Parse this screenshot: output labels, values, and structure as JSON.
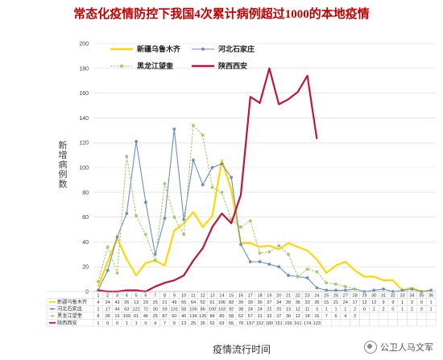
{
  "chart_data": {
    "type": "line",
    "title": "常态化疫情防控下我国4次累计病例超过1000的本地疫情",
    "xlabel": "疫情流行时间",
    "ylabel": "新增病例数",
    "ylim": [
      0,
      200
    ],
    "yticks": [
      0,
      20,
      40,
      60,
      80,
      100,
      120,
      140,
      160,
      180,
      200
    ],
    "categories": [
      "1",
      "2",
      "3",
      "4",
      "5",
      "6",
      "7",
      "8",
      "9",
      "10",
      "11",
      "12",
      "13",
      "14",
      "15",
      "16",
      "17",
      "18",
      "19",
      "20",
      "21",
      "22",
      "23",
      "24",
      "25",
      "26",
      "27",
      "28",
      "29",
      "30",
      "31",
      "32",
      "33",
      "34",
      "35",
      "36"
    ],
    "grid": true,
    "legend_position": "top-left",
    "series": [
      {
        "name": "新疆乌鲁木齐",
        "color": "#FFD700",
        "marker": "none",
        "dashed": false,
        "values": [
          4,
          24,
          43,
          26,
          13,
          23,
          25,
          21,
          49,
          55,
          64,
          52,
          61,
          106,
          82,
          39,
          39,
          36,
          37,
          34,
          39,
          36,
          33,
          26,
          15,
          21,
          24,
          17,
          12,
          12,
          9,
          9,
          1,
          3,
          0,
          1
        ]
      },
      {
        "name": "河北石家庄",
        "color": "#6A8FC0",
        "marker": "dot",
        "dashed": false,
        "values": [
          1,
          17,
          44,
          63,
          121,
          72,
          30,
          59,
          131,
          58,
          106,
          86,
          100,
          103,
          92,
          38,
          24,
          24,
          22,
          20,
          13,
          12,
          11,
          3,
          1,
          1,
          1,
          2,
          0,
          1,
          2,
          0,
          1,
          2,
          0,
          1
        ]
      },
      {
        "name": "黑龙江望奎",
        "color": "#A9C46C",
        "marker": "dot",
        "dashed": true,
        "values": [
          8,
          36,
          15,
          109,
          61,
          46,
          25,
          87,
          60,
          46,
          134,
          126,
          84,
          80,
          58,
          52,
          57,
          31,
          32,
          37,
          30,
          12,
          18,
          16,
          7,
          6,
          4,
          2,
          null,
          null,
          null,
          null,
          null,
          null,
          null,
          null
        ]
      },
      {
        "name": "陕西西安",
        "color": "#C0143C",
        "marker": "none",
        "dashed": false,
        "values": [
          1,
          0,
          0,
          1,
          1,
          0,
          4,
          7,
          9,
          13,
          25,
          35,
          52,
          63,
          55,
          78,
          157,
          152,
          180,
          151,
          155,
          161,
          174,
          123,
          null,
          null,
          null,
          null,
          null,
          null,
          null,
          null,
          null,
          null,
          null,
          null
        ]
      }
    ],
    "data_table": [
      {
        "name": "新疆乌鲁木齐",
        "cells": [
          "4",
          "24",
          "43",
          "26",
          "13",
          "23",
          "25",
          "21",
          "49",
          "55",
          "64",
          "52",
          "61",
          "106",
          "82",
          "39",
          "39",
          "36",
          "37",
          "34",
          "39",
          "36",
          "33",
          "26",
          "15",
          "21",
          "24",
          "17",
          "12",
          "12",
          "9",
          "9",
          "1",
          "3",
          "0",
          "1"
        ]
      },
      {
        "name": "河北石家庄",
        "cells": [
          "1",
          "17",
          "44",
          "63",
          "121",
          "72",
          "30",
          "59",
          "131",
          "58",
          "106",
          "86",
          "100",
          "103",
          "92",
          "38",
          "24",
          "24",
          "22",
          "20",
          "13",
          "12",
          "11",
          "3",
          "1",
          "1",
          "1",
          "2",
          "0",
          "1",
          "2",
          "0",
          "1",
          "2",
          "0",
          "1"
        ]
      },
      {
        "name": "黑龙江望奎",
        "cells": [
          "8",
          "36",
          "15",
          "109",
          "61",
          "46",
          "25",
          "87",
          "60",
          "46",
          "134",
          "126",
          "84",
          "80",
          "58",
          "52",
          "57",
          "31",
          "32",
          "37",
          "30",
          "12",
          "18",
          "16",
          "7",
          "6",
          "4",
          "2",
          "",
          "",
          "",
          "",
          "",
          "",
          "",
          ""
        ]
      },
      {
        "name": "陕西西安",
        "cells": [
          "1",
          "0",
          "0",
          "1",
          "1",
          "0",
          "4",
          "7",
          "9",
          "13",
          "25",
          "35",
          "52",
          "63",
          "55",
          "78",
          "157",
          "152",
          "180",
          "151",
          "155",
          "161",
          "174",
          "123",
          "",
          "",
          "",
          "",
          "",
          "",
          "",
          "",
          "",
          "",
          "",
          ""
        ]
      }
    ]
  },
  "watermark": {
    "icon": "wechat-bubble-icon",
    "text": "公卫人马文军"
  }
}
